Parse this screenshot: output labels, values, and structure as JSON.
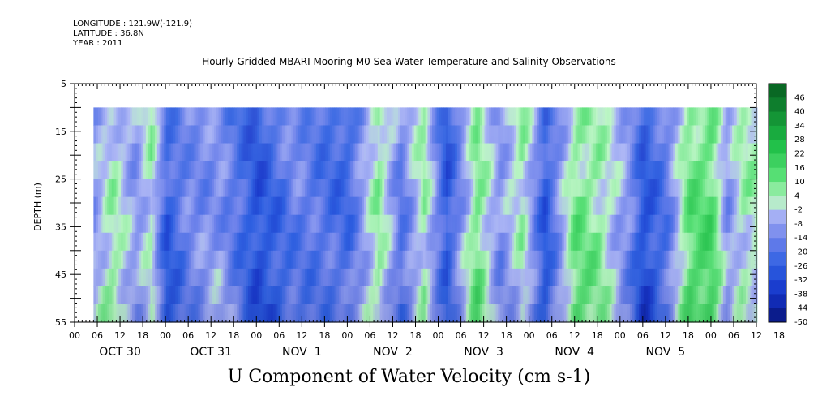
{
  "meta": {
    "longitude": "LONGITUDE : 121.9W(-121.9)",
    "latitude": "LATITUDE : 36.8N",
    "year": "YEAR : 2011"
  },
  "title": "Hourly Gridded MBARI Mooring M0 Sea Water Temperature and Salinity Observations",
  "bottom_title": "U Component of Water Velocity (cm s-1)",
  "chart_data": {
    "type": "heatmap",
    "title": "Hourly Gridded MBARI Mooring M0 Sea Water Temperature and Salinity Observations",
    "xlabel": "",
    "ylabel": "DEPTH (m)",
    "colorbar_label": "U Component of Water Velocity (cm s-1)",
    "y_ticks": [
      "5",
      "15",
      "25",
      "35",
      "45",
      "55"
    ],
    "y_range": [
      5,
      55
    ],
    "y_inverted": true,
    "data_depth_range": [
      10,
      55
    ],
    "hour_ticks": [
      "00",
      "06",
      "12",
      "18",
      "00",
      "06",
      "12",
      "18",
      "00",
      "06",
      "12",
      "18",
      "00",
      "06",
      "12",
      "18",
      "00",
      "06",
      "12",
      "18",
      "00",
      "06",
      "12",
      "18",
      "00",
      "06",
      "12",
      "18",
      "00",
      "06",
      "12",
      "18"
    ],
    "date_labels": [
      "OCT 30",
      "OCT 31",
      "NOV  1",
      "NOV  2",
      "NOV  3",
      "NOV  4",
      "NOV  5"
    ],
    "x_range_hours": [
      0,
      180
    ],
    "data_start_hour": 5,
    "colorbar_levels": [
      "46",
      "40",
      "34",
      "28",
      "22",
      "16",
      "10",
      "4",
      "-2",
      "-8",
      "-14",
      "-20",
      "-26",
      "-32",
      "-38",
      "-44",
      "-50"
    ],
    "color_scale": {
      "min": -50,
      "max": 50,
      "colors": {
        "deep_negative": "#0a1a8c",
        "negative": "#2a5ad8",
        "mild_negative": "#8f9ef0",
        "near_zero": "#b8bff5",
        "mild_positive": "#a6f0b0",
        "positive": "#3fd862",
        "strong_positive": "#0e7a2a"
      }
    },
    "column_profiles": [
      {
        "hour": 5,
        "u": -8
      },
      {
        "hour": 10,
        "u": 4
      },
      {
        "hour": 16,
        "u": -10
      },
      {
        "hour": 20,
        "u": 2
      },
      {
        "hour": 24,
        "u": -26
      },
      {
        "hour": 30,
        "u": -14
      },
      {
        "hour": 38,
        "u": -10
      },
      {
        "hour": 48,
        "u": -30
      },
      {
        "hour": 58,
        "u": -16
      },
      {
        "hour": 66,
        "u": -20
      },
      {
        "hour": 72,
        "u": -22
      },
      {
        "hour": 80,
        "u": 6
      },
      {
        "hour": 86,
        "u": -18
      },
      {
        "hour": 92,
        "u": 4
      },
      {
        "hour": 98,
        "u": -28
      },
      {
        "hour": 106,
        "u": 10
      },
      {
        "hour": 112,
        "u": -12
      },
      {
        "hour": 118,
        "u": 4
      },
      {
        "hour": 124,
        "u": -28
      },
      {
        "hour": 132,
        "u": 10
      },
      {
        "hour": 138,
        "u": 6
      },
      {
        "hour": 146,
        "u": -12
      },
      {
        "hour": 150,
        "u": -30
      },
      {
        "hour": 156,
        "u": -18
      },
      {
        "hour": 162,
        "u": 12
      },
      {
        "hour": 168,
        "u": 14
      },
      {
        "hour": 172,
        "u": -10
      },
      {
        "hour": 176,
        "u": 2
      }
    ]
  }
}
